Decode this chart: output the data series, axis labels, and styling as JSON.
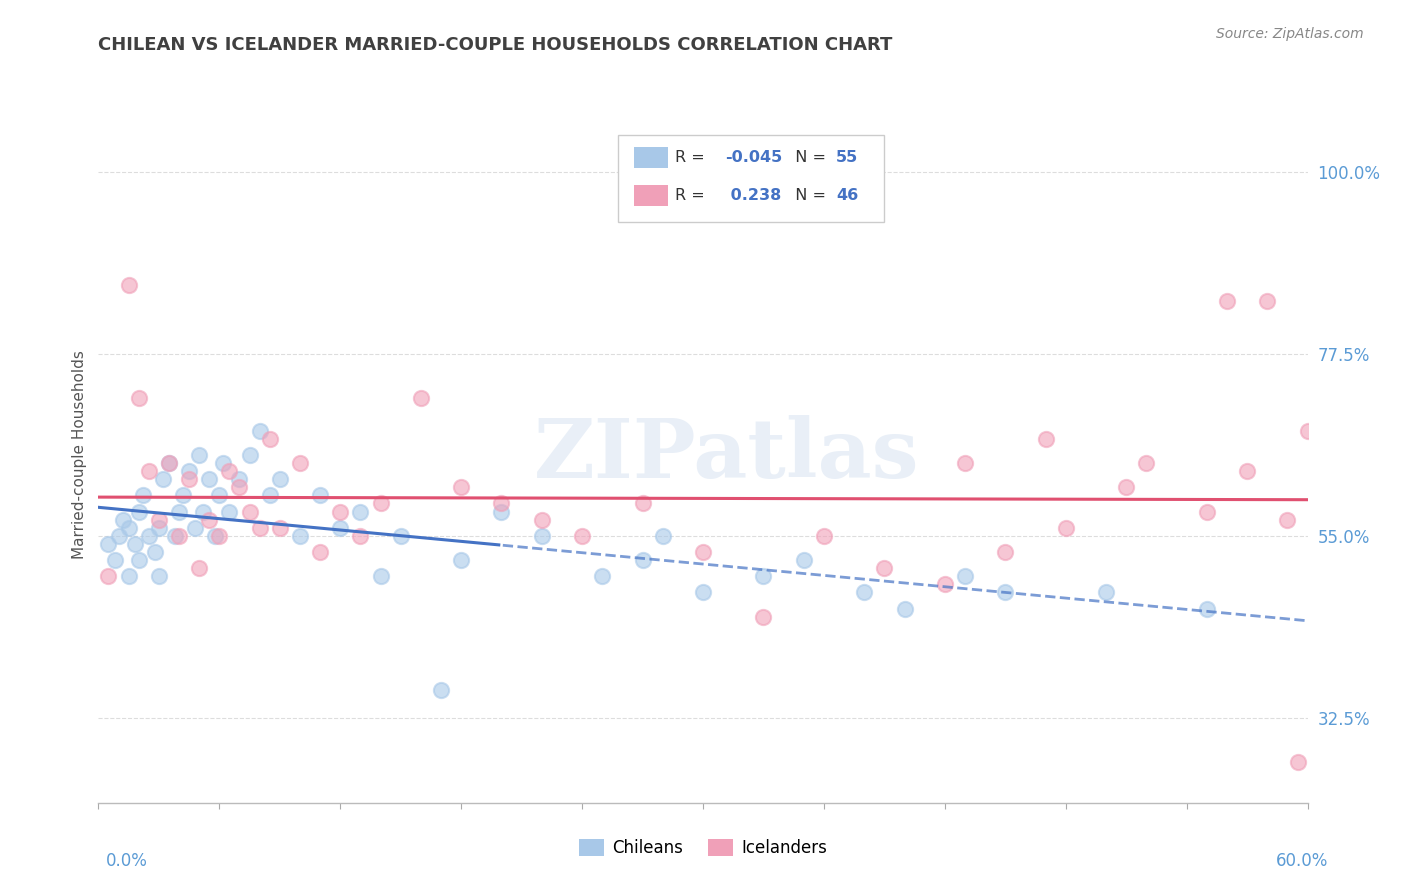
{
  "title": "CHILEAN VS ICELANDER MARRIED-COUPLE HOUSEHOLDS CORRELATION CHART",
  "source": "Source: ZipAtlas.com",
  "ylabel": "Married-couple Households",
  "yticks": [
    32.5,
    55.0,
    77.5,
    100.0
  ],
  "ytick_labels": [
    "32.5%",
    "55.0%",
    "77.5%",
    "100.0%"
  ],
  "xmin": 0.0,
  "xmax": 60.0,
  "ymin": 22.0,
  "ymax": 108.0,
  "legend_r_chileans": "-0.045",
  "legend_n_chileans": "55",
  "legend_r_icelanders": "0.238",
  "legend_n_icelanders": "46",
  "color_chileans": "#A8C8E8",
  "color_icelanders": "#F0A0B8",
  "color_line_chileans": "#4472C4",
  "color_line_icelanders": "#E05070",
  "color_axis_labels": "#5B9BD5",
  "color_title": "#404040",
  "color_r_value": "#4472C4",
  "color_n_value": "#4472C4",
  "chileans_x": [
    0.5,
    0.8,
    1.0,
    1.2,
    1.5,
    1.5,
    1.8,
    2.0,
    2.0,
    2.2,
    2.5,
    2.8,
    3.0,
    3.0,
    3.2,
    3.5,
    3.8,
    4.0,
    4.2,
    4.5,
    4.8,
    5.0,
    5.2,
    5.5,
    5.8,
    6.0,
    6.2,
    6.5,
    7.0,
    7.5,
    8.0,
    8.5,
    9.0,
    10.0,
    11.0,
    12.0,
    13.0,
    14.0,
    15.0,
    17.0,
    18.0,
    20.0,
    22.0,
    25.0,
    27.0,
    28.0,
    30.0,
    33.0,
    35.0,
    38.0,
    40.0,
    43.0,
    45.0,
    50.0,
    55.0
  ],
  "chileans_y": [
    54.0,
    52.0,
    55.0,
    57.0,
    56.0,
    50.0,
    54.0,
    58.0,
    52.0,
    60.0,
    55.0,
    53.0,
    56.0,
    50.0,
    62.0,
    64.0,
    55.0,
    58.0,
    60.0,
    63.0,
    56.0,
    65.0,
    58.0,
    62.0,
    55.0,
    60.0,
    64.0,
    58.0,
    62.0,
    65.0,
    68.0,
    60.0,
    62.0,
    55.0,
    60.0,
    56.0,
    58.0,
    50.0,
    55.0,
    36.0,
    52.0,
    58.0,
    55.0,
    50.0,
    52.0,
    55.0,
    48.0,
    50.0,
    52.0,
    48.0,
    46.0,
    50.0,
    48.0,
    48.0,
    46.0
  ],
  "icelanders_x": [
    0.5,
    1.5,
    2.0,
    2.5,
    3.0,
    3.5,
    4.0,
    4.5,
    5.0,
    5.5,
    6.0,
    6.5,
    7.0,
    7.5,
    8.0,
    8.5,
    9.0,
    10.0,
    11.0,
    12.0,
    13.0,
    14.0,
    16.0,
    18.0,
    20.0,
    22.0,
    24.0,
    27.0,
    30.0,
    33.0,
    36.0,
    39.0,
    42.0,
    45.0,
    48.0,
    51.0,
    55.0,
    57.0,
    59.0,
    43.0,
    47.0,
    52.0,
    56.0,
    58.0,
    59.5,
    60.0
  ],
  "icelanders_y": [
    50.0,
    86.0,
    72.0,
    63.0,
    57.0,
    64.0,
    55.0,
    62.0,
    51.0,
    57.0,
    55.0,
    63.0,
    61.0,
    58.0,
    56.0,
    67.0,
    56.0,
    64.0,
    53.0,
    58.0,
    55.0,
    59.0,
    72.0,
    61.0,
    59.0,
    57.0,
    55.0,
    59.0,
    53.0,
    45.0,
    55.0,
    51.0,
    49.0,
    53.0,
    56.0,
    61.0,
    58.0,
    63.0,
    57.0,
    64.0,
    67.0,
    64.0,
    84.0,
    84.0,
    27.0,
    68.0
  ],
  "watermark_text": "ZIPatlas",
  "background_color": "#FFFFFF",
  "grid_color": "#DDDDDD"
}
